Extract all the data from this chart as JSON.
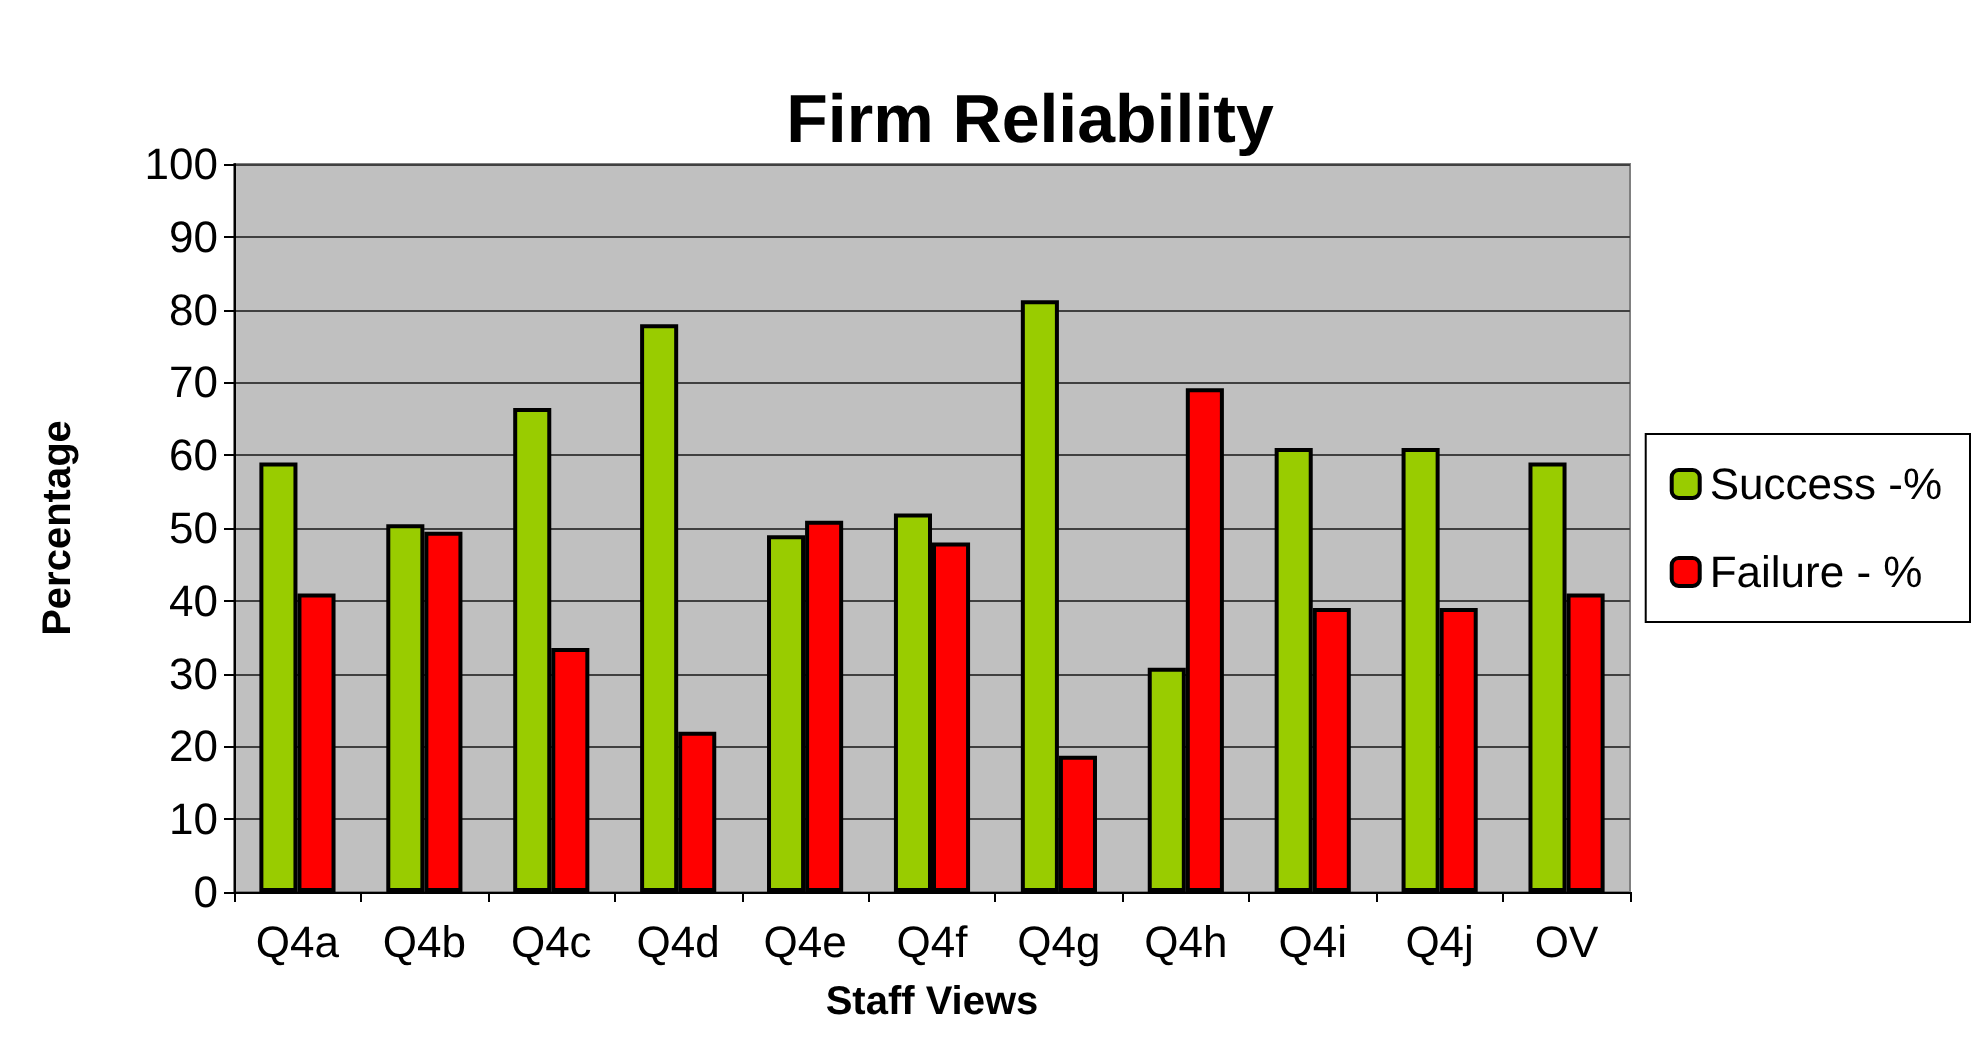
{
  "chart_data": {
    "type": "bar",
    "title": "Firm Reliability",
    "xlabel": "Staff Views",
    "ylabel": "Percentage",
    "categories": [
      "Q4a",
      "Q4b",
      "Q4c",
      "Q4d",
      "Q4e",
      "Q4f",
      "Q4g",
      "Q4h",
      "Q4i",
      "Q4j",
      "OV"
    ],
    "series": [
      {
        "name": "Success -%",
        "color": "#99cc00",
        "values": [
          59,
          50.5,
          66.5,
          78,
          49,
          52,
          81.3,
          30.8,
          61,
          61,
          59
        ]
      },
      {
        "name": "Failure - %",
        "color": "#ff0000",
        "values": [
          41,
          49.5,
          33.5,
          22,
          51,
          48,
          18.7,
          69.2,
          39,
          39,
          41
        ]
      }
    ],
    "ylim": [
      0,
      100
    ],
    "yticks": [
      0,
      10,
      20,
      30,
      40,
      50,
      60,
      70,
      80,
      90,
      100
    ],
    "grid": "y",
    "legend": "right"
  }
}
